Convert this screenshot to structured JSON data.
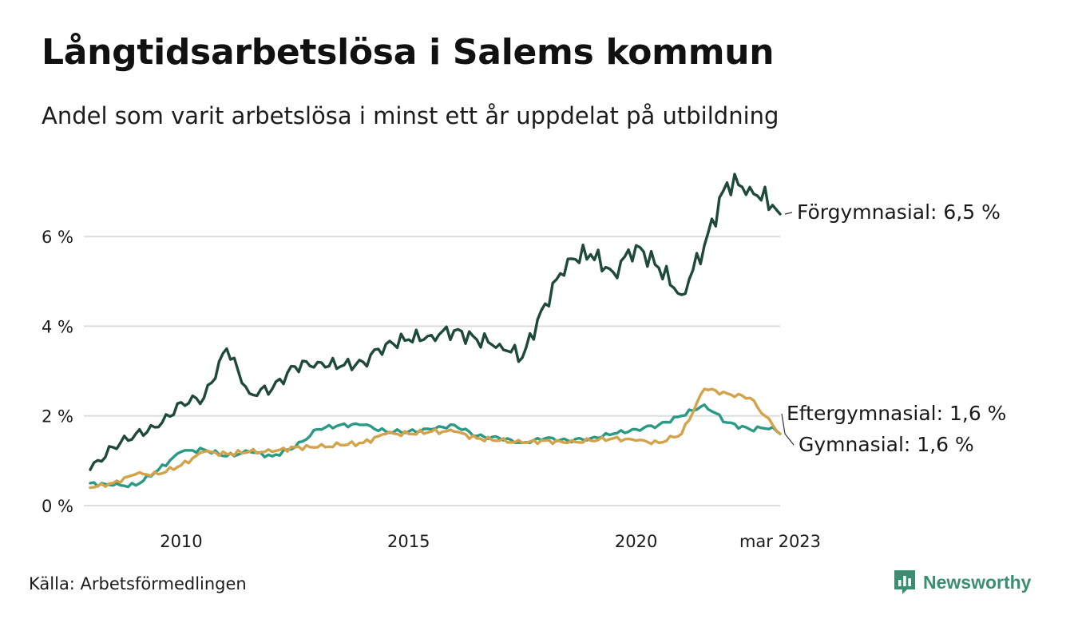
{
  "header": {
    "title": "Långtidsarbetslösa i Salems kommun",
    "subtitle": "Andel som varit arbetslösa i minst ett år uppdelat på utbildning"
  },
  "footer": {
    "source": "Källa: Arbetsförmedlingen",
    "brand": "Newsworthy"
  },
  "colors": {
    "forgymnasial": "#1f4a3b",
    "eftergymnasial": "#2a9a84",
    "gymnasial": "#d2a34a",
    "grid": "#dddddd",
    "brand": "#3a8f73"
  },
  "chart_data": {
    "type": "line",
    "title": "Långtidsarbetslösa i Salems kommun",
    "subtitle": "Andel som varit arbetslösa i minst ett år uppdelat på utbildning",
    "x_range": [
      "2008-01",
      "2023-03"
    ],
    "ylim": [
      0,
      7.8
    ],
    "y_ticks": [
      0,
      2,
      4,
      6
    ],
    "y_tick_labels": [
      "0 %",
      "2 %",
      "4 %",
      "6 %"
    ],
    "x_ticks": [
      "2010-01",
      "2015-01",
      "2020-01",
      "2023-03"
    ],
    "x_tick_labels": [
      "2010",
      "2015",
      "2020",
      "mar 2023"
    ],
    "grid": "horizontal",
    "legend": "direct labels at line ends (right)",
    "series": [
      {
        "name": "Förgymnasial",
        "end_label": "Förgymnasial: 6,5 %",
        "color_key": "forgymnasial",
        "points": [
          [
            "2008-01",
            0.8
          ],
          [
            "2008-07",
            1.3
          ],
          [
            "2009-01",
            1.6
          ],
          [
            "2009-07",
            1.75
          ],
          [
            "2010-01",
            2.3
          ],
          [
            "2010-07",
            2.4
          ],
          [
            "2011-01",
            3.5
          ],
          [
            "2011-07",
            2.5
          ],
          [
            "2012-01",
            2.6
          ],
          [
            "2012-07",
            3.1
          ],
          [
            "2013-01",
            3.2
          ],
          [
            "2013-07",
            3.1
          ],
          [
            "2014-01",
            3.2
          ],
          [
            "2014-07",
            3.6
          ],
          [
            "2015-01",
            3.7
          ],
          [
            "2015-07",
            3.8
          ],
          [
            "2016-01",
            3.9
          ],
          [
            "2016-07",
            3.7
          ],
          [
            "2017-01",
            3.6
          ],
          [
            "2017-07",
            3.3
          ],
          [
            "2018-01",
            4.5
          ],
          [
            "2018-07",
            5.5
          ],
          [
            "2019-01",
            5.6
          ],
          [
            "2019-07",
            5.2
          ],
          [
            "2020-01",
            5.8
          ],
          [
            "2020-07",
            5.3
          ],
          [
            "2021-01",
            4.7
          ],
          [
            "2021-07",
            5.8
          ],
          [
            "2022-01",
            7.2
          ],
          [
            "2022-07",
            7.1
          ],
          [
            "2023-01",
            6.7
          ],
          [
            "2023-03",
            6.5
          ]
        ]
      },
      {
        "name": "Eftergymnasial",
        "end_label": "Eftergymnasial: 1,6 %",
        "color_key": "eftergymnasial",
        "points": [
          [
            "2008-01",
            0.5
          ],
          [
            "2008-07",
            0.45
          ],
          [
            "2009-01",
            0.45
          ],
          [
            "2009-07",
            0.8
          ],
          [
            "2010-01",
            1.2
          ],
          [
            "2010-07",
            1.25
          ],
          [
            "2011-01",
            1.1
          ],
          [
            "2011-07",
            1.2
          ],
          [
            "2012-01",
            1.1
          ],
          [
            "2012-07",
            1.3
          ],
          [
            "2013-01",
            1.7
          ],
          [
            "2013-07",
            1.8
          ],
          [
            "2014-01",
            1.8
          ],
          [
            "2014-07",
            1.65
          ],
          [
            "2015-01",
            1.65
          ],
          [
            "2015-07",
            1.7
          ],
          [
            "2016-01",
            1.8
          ],
          [
            "2016-07",
            1.55
          ],
          [
            "2017-01",
            1.5
          ],
          [
            "2017-07",
            1.4
          ],
          [
            "2018-01",
            1.5
          ],
          [
            "2018-07",
            1.45
          ],
          [
            "2019-01",
            1.5
          ],
          [
            "2019-07",
            1.6
          ],
          [
            "2020-01",
            1.7
          ],
          [
            "2020-07",
            1.8
          ],
          [
            "2021-01",
            2.0
          ],
          [
            "2021-07",
            2.25
          ],
          [
            "2022-01",
            1.85
          ],
          [
            "2022-07",
            1.7
          ],
          [
            "2023-01",
            1.75
          ],
          [
            "2023-03",
            1.6
          ]
        ]
      },
      {
        "name": "Gymnasial",
        "end_label": "Gymnasial: 1,6 %",
        "color_key": "gymnasial",
        "points": [
          [
            "2008-01",
            0.4
          ],
          [
            "2008-07",
            0.5
          ],
          [
            "2009-01",
            0.7
          ],
          [
            "2009-07",
            0.7
          ],
          [
            "2010-01",
            0.9
          ],
          [
            "2010-07",
            1.2
          ],
          [
            "2011-01",
            1.15
          ],
          [
            "2011-07",
            1.2
          ],
          [
            "2012-01",
            1.2
          ],
          [
            "2012-07",
            1.3
          ],
          [
            "2013-01",
            1.3
          ],
          [
            "2013-07",
            1.35
          ],
          [
            "2014-01",
            1.4
          ],
          [
            "2014-07",
            1.6
          ],
          [
            "2015-01",
            1.6
          ],
          [
            "2015-07",
            1.65
          ],
          [
            "2016-01",
            1.65
          ],
          [
            "2016-07",
            1.5
          ],
          [
            "2017-01",
            1.45
          ],
          [
            "2017-07",
            1.4
          ],
          [
            "2018-01",
            1.45
          ],
          [
            "2018-07",
            1.4
          ],
          [
            "2019-01",
            1.45
          ],
          [
            "2019-07",
            1.5
          ],
          [
            "2020-01",
            1.45
          ],
          [
            "2020-07",
            1.4
          ],
          [
            "2021-01",
            1.6
          ],
          [
            "2021-07",
            2.6
          ],
          [
            "2022-01",
            2.5
          ],
          [
            "2022-07",
            2.4
          ],
          [
            "2023-01",
            1.8
          ],
          [
            "2023-03",
            1.6
          ]
        ]
      }
    ]
  }
}
